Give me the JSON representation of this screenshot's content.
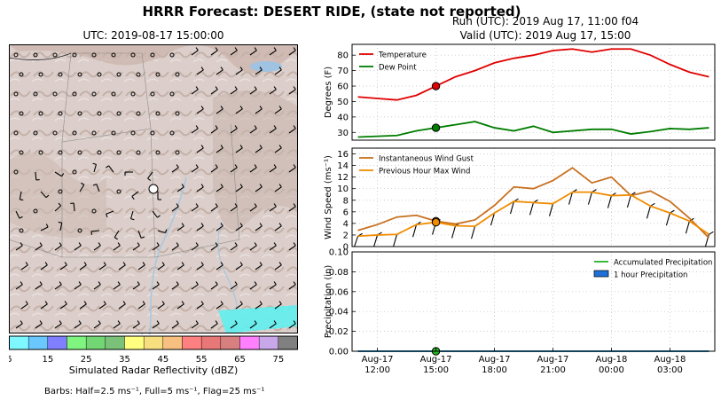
{
  "title": "HRRR Forecast: DESERT RIDE, (state not reported)",
  "run_text": "Run (UTC): 2019 Aug 17, 11:00 f04",
  "valid_text": "Valid (UTC): 2019 Aug 17, 15:00",
  "map": {
    "title": "UTC: 2019-08-17 15:00:00",
    "colorbar_label": "Simulated Radar Reflectivity (dBZ)",
    "colorbar_ticks": [
      "5",
      "15",
      "25",
      "35",
      "45",
      "55",
      "65",
      "75"
    ],
    "colorbar_colors": [
      "#7ff7ff",
      "#6ac8ff",
      "#8080ff",
      "#7ff57f",
      "#72d672",
      "#7ac27a",
      "#ffff80",
      "#f7df80",
      "#f7c080",
      "#ff8080",
      "#e87878",
      "#d88080",
      "#ff80ff",
      "#c8a8e8",
      "#808080"
    ],
    "barbs_note": "Barbs: Half=2.5 ms⁻¹, Full=5 ms⁻¹, Flag=25 ms⁻¹"
  },
  "x_tick_labels": [
    {
      "day": "Aug-17",
      "hour": "12:00"
    },
    {
      "day": "Aug-17",
      "hour": "15:00"
    },
    {
      "day": "Aug-17",
      "hour": "18:00"
    },
    {
      "day": "Aug-17",
      "hour": "21:00"
    },
    {
      "day": "Aug-18",
      "hour": "00:00"
    },
    {
      "day": "Aug-18",
      "hour": "03:00"
    }
  ],
  "chart_data": [
    {
      "type": "line",
      "ylabel": "Degrees (F)",
      "ylim": [
        25,
        87
      ],
      "yticks": [
        30,
        40,
        50,
        60,
        70,
        80
      ],
      "grid": true,
      "legend": "top-left",
      "x": [
        "2019-08-17 11:00",
        "2019-08-17 12:00",
        "2019-08-17 13:00",
        "2019-08-17 14:00",
        "2019-08-17 15:00",
        "2019-08-17 16:00",
        "2019-08-17 17:00",
        "2019-08-17 18:00",
        "2019-08-17 19:00",
        "2019-08-17 20:00",
        "2019-08-17 21:00",
        "2019-08-17 22:00",
        "2019-08-17 23:00",
        "2019-08-18 00:00",
        "2019-08-18 01:00",
        "2019-08-18 02:00",
        "2019-08-18 03:00",
        "2019-08-18 04:00",
        "2019-08-18 05:00"
      ],
      "series": [
        {
          "name": "Temperature",
          "color": "#e00000",
          "values": [
            53,
            52,
            51,
            54,
            60,
            66,
            70,
            75,
            78,
            80,
            83,
            84,
            82,
            84,
            84,
            80,
            74,
            69,
            66
          ]
        },
        {
          "name": "Dew Point",
          "color": "#007d00",
          "values": [
            27,
            27.5,
            28,
            31,
            33,
            35,
            37,
            33,
            31,
            34,
            30,
            31,
            32,
            32,
            29,
            30.5,
            32.5,
            32,
            33
          ]
        }
      ],
      "highlight_x": "2019-08-17 15:00"
    },
    {
      "type": "line",
      "ylabel": "Wind Speed (ms⁻¹)",
      "ylim": [
        0,
        17
      ],
      "yticks": [
        0,
        2,
        4,
        6,
        8,
        10,
        12,
        14,
        16
      ],
      "grid": true,
      "legend": "top-left",
      "x": [
        "2019-08-17 11:00",
        "2019-08-17 12:00",
        "2019-08-17 13:00",
        "2019-08-17 14:00",
        "2019-08-17 15:00",
        "2019-08-17 16:00",
        "2019-08-17 17:00",
        "2019-08-17 18:00",
        "2019-08-17 19:00",
        "2019-08-17 20:00",
        "2019-08-17 21:00",
        "2019-08-17 22:00",
        "2019-08-17 23:00",
        "2019-08-18 00:00",
        "2019-08-18 01:00",
        "2019-08-18 02:00",
        "2019-08-18 03:00",
        "2019-08-18 04:00",
        "2019-08-18 05:00"
      ],
      "series": [
        {
          "name": "Instantaneous Wind Gust",
          "color": "#c87020",
          "values": [
            2.8,
            3.8,
            5.1,
            5.4,
            4.4,
            3.9,
            4.6,
            7.1,
            10.3,
            10.0,
            11.4,
            13.6,
            11.0,
            12.0,
            8.8,
            9.6,
            7.8,
            4.9,
            1.5
          ]
        },
        {
          "name": "Previous Hour Max Wind",
          "color": "#f08c00",
          "values": [
            1.8,
            2.0,
            2.1,
            3.8,
            4.2,
            3.6,
            3.5,
            5.8,
            7.8,
            7.6,
            7.4,
            9.4,
            9.4,
            8.8,
            8.9,
            7.0,
            5.8,
            4.4,
            2.1
          ]
        }
      ],
      "highlight_x": "2019-08-17 15:00"
    },
    {
      "type": "line",
      "ylabel": "Precipitation (in)",
      "ylim": [
        0,
        0.1
      ],
      "yticks": [
        0.0,
        0.02,
        0.04,
        0.06,
        0.08,
        0.1
      ],
      "ytick_labels": [
        "0.00",
        "0.02",
        "0.04",
        "0.06",
        "0.08",
        "0.10"
      ],
      "grid": true,
      "legend": "top-right",
      "x": [
        "2019-08-17 11:00",
        "2019-08-17 12:00",
        "2019-08-17 13:00",
        "2019-08-17 14:00",
        "2019-08-17 15:00",
        "2019-08-17 16:00",
        "2019-08-17 17:00",
        "2019-08-17 18:00",
        "2019-08-17 19:00",
        "2019-08-17 20:00",
        "2019-08-17 21:00",
        "2019-08-17 22:00",
        "2019-08-17 23:00",
        "2019-08-18 00:00",
        "2019-08-18 01:00",
        "2019-08-18 02:00",
        "2019-08-18 03:00",
        "2019-08-18 04:00",
        "2019-08-18 05:00"
      ],
      "series": [
        {
          "name": "Accumulated Precipitation",
          "color": "#22b422",
          "values": [
            0,
            0,
            0,
            0,
            0,
            0,
            0,
            0,
            0,
            0,
            0,
            0,
            0,
            0,
            0,
            0,
            0,
            0,
            0
          ]
        },
        {
          "name": "1 hour Precipitation",
          "color": "#1e6fd8",
          "values": [
            0,
            0,
            0,
            0,
            0,
            0,
            0,
            0,
            0,
            0,
            0,
            0,
            0,
            0,
            0,
            0,
            0,
            0,
            0
          ]
        }
      ],
      "highlight_x": "2019-08-17 15:00"
    }
  ]
}
